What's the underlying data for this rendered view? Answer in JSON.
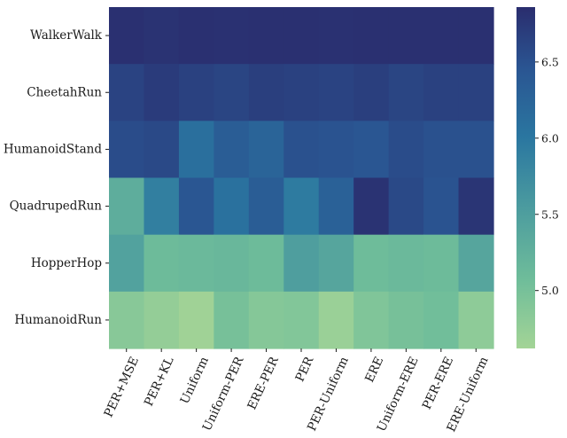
{
  "chart_data": {
    "type": "heatmap",
    "title": "",
    "xlabel": "",
    "ylabel": "",
    "rows": [
      "WalkerWalk",
      "CheetahRun",
      "HumanoidStand",
      "QuadrupedRun",
      "HopperHop",
      "HumanoidRun"
    ],
    "columns": [
      "PER+MSE",
      "PER+KL",
      "Uniform",
      "Uniform-PER",
      "ERE-PER",
      "PER",
      "PER-Uniform",
      "ERE",
      "Uniform-ERE",
      "PER-ERE",
      "ERE-Uniform"
    ],
    "values": [
      [
        6.83,
        6.8,
        6.83,
        6.82,
        6.83,
        6.83,
        6.82,
        6.83,
        6.83,
        6.83,
        6.83
      ],
      [
        6.64,
        6.72,
        6.66,
        6.62,
        6.68,
        6.66,
        6.64,
        6.68,
        6.62,
        6.66,
        6.66
      ],
      [
        6.55,
        6.58,
        6.1,
        6.35,
        6.25,
        6.5,
        6.48,
        6.45,
        6.55,
        6.5,
        6.5
      ],
      [
        5.3,
        5.9,
        6.45,
        6.08,
        6.35,
        5.95,
        6.3,
        6.8,
        6.58,
        6.48,
        6.78
      ],
      [
        5.45,
        5.1,
        5.12,
        5.15,
        5.1,
        5.5,
        5.4,
        5.08,
        5.12,
        5.1,
        5.4
      ],
      [
        4.85,
        4.75,
        4.65,
        5.0,
        4.88,
        4.9,
        4.7,
        4.92,
        5.0,
        5.05,
        4.8
      ]
    ],
    "colorbar": {
      "range": [
        4.62,
        6.86
      ],
      "ticks": [
        "5.0",
        "5.5",
        "6.0",
        "6.5"
      ],
      "colormap": "crest"
    },
    "grid": false,
    "legend": "colorbar-right"
  }
}
